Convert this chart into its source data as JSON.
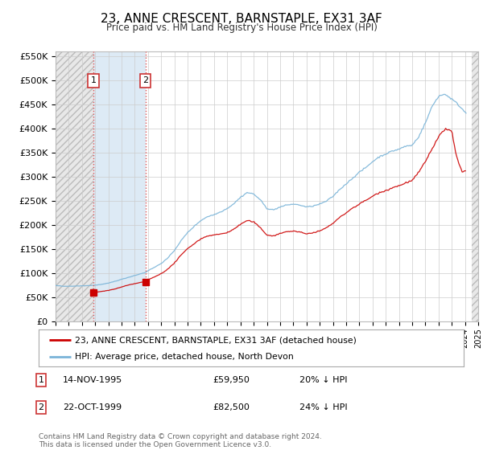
{
  "title": "23, ANNE CRESCENT, BARNSTAPLE, EX31 3AF",
  "subtitle": "Price paid vs. HM Land Registry's House Price Index (HPI)",
  "legend_line1": "23, ANNE CRESCENT, BARNSTAPLE, EX31 3AF (detached house)",
  "legend_line2": "HPI: Average price, detached house, North Devon",
  "footnote": "Contains HM Land Registry data © Crown copyright and database right 2024.\nThis data is licensed under the Open Government Licence v3.0.",
  "sale1_date": "14-NOV-1995",
  "sale1_price": 59950,
  "sale1_hpi_diff": "20% ↓ HPI",
  "sale2_date": "22-OCT-1999",
  "sale2_price": 82500,
  "sale2_hpi_diff": "24% ↓ HPI",
  "ylim": [
    0,
    560000
  ],
  "ytick_step": 50000,
  "hpi_color": "#7ab4d8",
  "price_color": "#cc0000",
  "hatch_color": "#c8d8e8",
  "sale1_x": 1995.87,
  "sale2_x": 1999.8
}
